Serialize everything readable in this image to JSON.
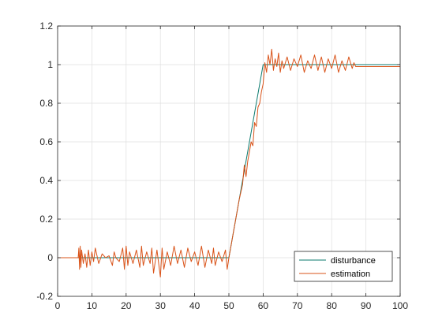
{
  "chart_data": {
    "type": "line",
    "xlim": [
      0,
      100
    ],
    "ylim": [
      -0.2,
      1.2
    ],
    "x_ticks": [
      "0",
      "10",
      "20",
      "30",
      "40",
      "50",
      "60",
      "70",
      "80",
      "90",
      "100"
    ],
    "y_ticks": [
      "-0.2",
      "0",
      "0.2",
      "0.4",
      "0.6",
      "0.8",
      "1",
      "1.2"
    ],
    "grid": true,
    "legend_position": "bottom-right",
    "series": [
      {
        "name": "disturbance",
        "color": "#0b7a6e",
        "x": [
          0,
          50,
          60,
          100
        ],
        "y": [
          0,
          0,
          1,
          1
        ]
      },
      {
        "name": "estimation",
        "color": "#d95319",
        "x": [
          0,
          6,
          6.2,
          6.4,
          6.6,
          6.8,
          7,
          7.5,
          8,
          8.5,
          9,
          9.5,
          10,
          10.5,
          11,
          12,
          13,
          14,
          15,
          16,
          16.5,
          17,
          18,
          19,
          19.5,
          20,
          20.5,
          21,
          22,
          23,
          24,
          24.5,
          25,
          26,
          27,
          27.5,
          28,
          29,
          30,
          30.5,
          31,
          32,
          33,
          34,
          35,
          36,
          37,
          38,
          39,
          40,
          41,
          42,
          43,
          44,
          45,
          45.5,
          46,
          47,
          48,
          49,
          49.5,
          50,
          51,
          52,
          53,
          54,
          54.5,
          55,
          55.5,
          56,
          56.5,
          57,
          57.5,
          58,
          58.5,
          59,
          59.5,
          60,
          60.5,
          61,
          61.5,
          62,
          62.5,
          63,
          63.5,
          64,
          64.5,
          65,
          65.5,
          66,
          67,
          68,
          69,
          70,
          71,
          72,
          73,
          74,
          75,
          76,
          77,
          78,
          79,
          80,
          81,
          82,
          83,
          84,
          85,
          86,
          86.5,
          87,
          90,
          100
        ],
        "y": [
          0,
          0,
          0.05,
          -0.06,
          0.06,
          -0.05,
          0.04,
          -0.03,
          0.02,
          -0.05,
          0.04,
          -0.04,
          0.03,
          -0.02,
          0.05,
          -0.03,
          0.02,
          0,
          0.01,
          -0.04,
          0.03,
          0,
          -0.02,
          0.05,
          -0.06,
          0.06,
          -0.04,
          0.03,
          -0.03,
          0.04,
          -0.05,
          0.06,
          -0.04,
          0.03,
          -0.03,
          0.05,
          -0.08,
          0.04,
          -0.1,
          0.05,
          -0.06,
          0.03,
          -0.04,
          0.06,
          -0.03,
          0.04,
          -0.05,
          0.05,
          -0.02,
          0.03,
          -0.04,
          0.06,
          -0.05,
          0.04,
          -0.03,
          0.05,
          -0.04,
          0.03,
          -0.02,
          0.04,
          -0.06,
          0,
          0.1,
          0.2,
          0.3,
          0.38,
          0.48,
          0.42,
          0.5,
          0.55,
          0.6,
          0.58,
          0.7,
          0.68,
          0.78,
          0.8,
          0.86,
          0.9,
          1.01,
          0.96,
          1.05,
          1.0,
          1.08,
          0.97,
          1.03,
          0.99,
          1.06,
          0.96,
          1.02,
          0.98,
          1.04,
          0.97,
          1.03,
          0.99,
          1.05,
          0.96,
          1.02,
          0.98,
          1.05,
          0.97,
          1.04,
          0.96,
          1.03,
          0.98,
          1.05,
          0.96,
          1.02,
          0.97,
          1.04,
          0.98,
          1.01,
          0.99,
          0.99,
          0.99
        ]
      }
    ]
  }
}
